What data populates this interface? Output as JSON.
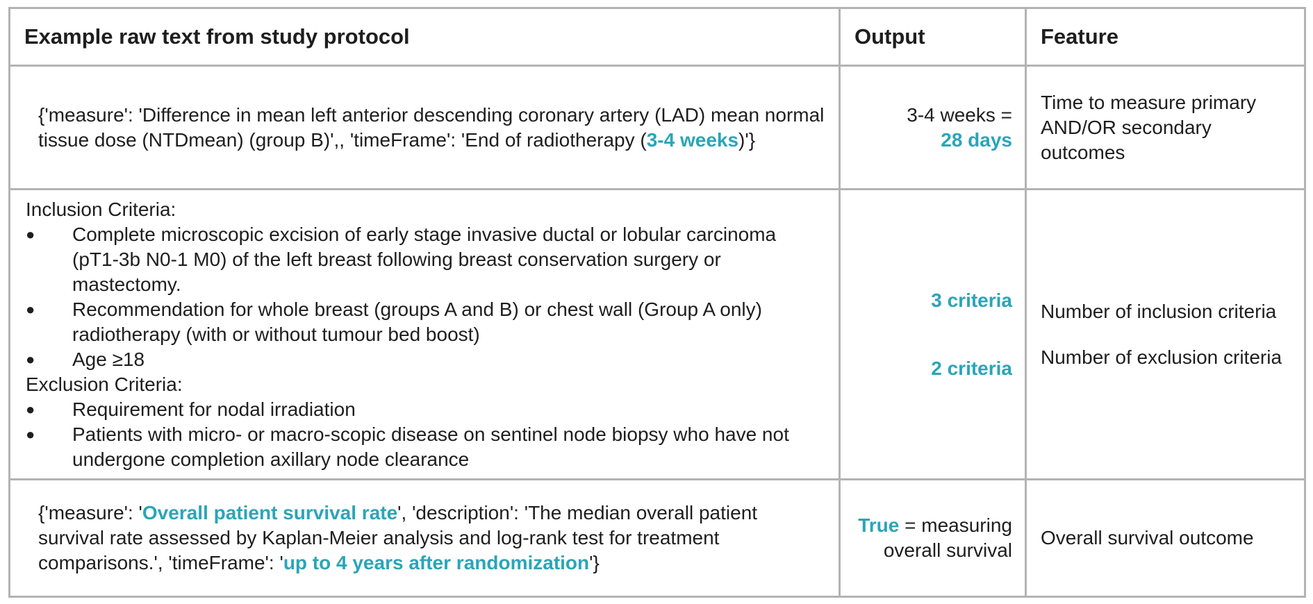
{
  "headers": {
    "raw_text": "Example raw text from study protocol",
    "output": "Output",
    "feature": "Feature"
  },
  "row1": {
    "raw_pre": "{'measure': 'Difference in mean left anterior descending coronary artery (LAD) mean normal tissue dose (NTDmean) (group B)',, 'timeFrame': 'End of radiotherapy (",
    "raw_hl": "3-4 weeks",
    "raw_post": ")'}",
    "output_plain": "3-4 weeks =",
    "output_hl": "28 days",
    "feature": "Time to measure primary AND/OR secondary outcomes"
  },
  "row2": {
    "inclusion_heading": "Inclusion Criteria:",
    "inclusion_items": [
      "Complete microscopic excision of early stage invasive ductal or lobular carcinoma (pT1-3b N0-1 M0) of the left breast following breast conservation surgery or mastectomy.",
      "Recommendation for whole breast (groups A and B) or chest wall (Group A only) radiotherapy (with or without tumour bed boost)",
      "Age ≥18"
    ],
    "exclusion_heading": "Exclusion Criteria:",
    "exclusion_items": [
      "Requirement for nodal irradiation",
      "Patients with micro- or macro-scopic disease on sentinel node biopsy who have not undergone completion axillary node clearance"
    ],
    "output_inclusion": "3 criteria",
    "output_exclusion": "2 criteria",
    "feature_inclusion": "Number of inclusion criteria",
    "feature_exclusion": "Number of exclusion criteria"
  },
  "row3": {
    "raw_pre": "{'measure': '",
    "raw_hl1": "Overall patient survival rate",
    "raw_mid": "', 'description': 'The median overall patient survival rate assessed by Kaplan-Meier analysis and log-rank test for treatment comparisons.', 'timeFrame': '",
    "raw_hl2": "up to 4 years after randomization",
    "raw_post": "'}",
    "output_hl": "True",
    "output_plain": " = measuring overall survival",
    "feature": "Overall survival outcome"
  },
  "colors": {
    "highlight": "#2aa5b8",
    "border": "#b3b3b3",
    "text": "#1e1e1e"
  }
}
